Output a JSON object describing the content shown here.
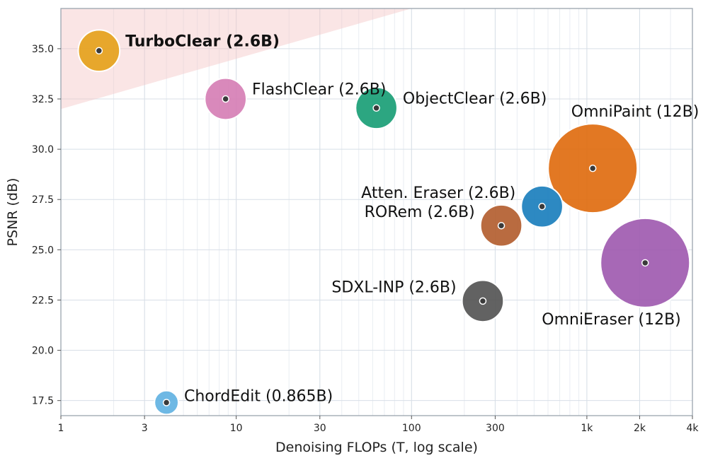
{
  "chart_data": {
    "type": "scatter",
    "xlabel": "Denoising FLOPs (T, log scale)",
    "ylabel": "PSNR (dB)",
    "x_scale": "log",
    "xlim": [
      1,
      4000
    ],
    "ylim": [
      16.75,
      37
    ],
    "x_ticks": [
      {
        "value": 1,
        "label": "1"
      },
      {
        "value": 3,
        "label": "3"
      },
      {
        "value": 10,
        "label": "10"
      },
      {
        "value": 30,
        "label": "30"
      },
      {
        "value": 100,
        "label": "100"
      },
      {
        "value": 300,
        "label": "300"
      },
      {
        "value": 1000,
        "label": "1k"
      },
      {
        "value": 2000,
        "label": "2k"
      },
      {
        "value": 4000,
        "label": "4k"
      }
    ],
    "y_ticks": [
      {
        "value": 17.5,
        "label": "17.5"
      },
      {
        "value": 20.0,
        "label": "20.0"
      },
      {
        "value": 22.5,
        "label": "22.5"
      },
      {
        "value": 25.0,
        "label": "25.0"
      },
      {
        "value": 27.5,
        "label": "27.5"
      },
      {
        "value": 30.0,
        "label": "30.0"
      },
      {
        "value": 32.5,
        "label": "32.5"
      },
      {
        "value": 35.0,
        "label": "35.0"
      }
    ],
    "grid": true,
    "highlight_region": {
      "color": "#f5c6c6",
      "boundary": [
        [
          1,
          32.0
        ],
        [
          100,
          37.0
        ]
      ]
    },
    "points": [
      {
        "name": "TurboClear (2.6B)",
        "x": 1.65,
        "y": 34.9,
        "params_b": 2.6,
        "color": "#e5a21c",
        "bold": true,
        "label_pos": "right-up"
      },
      {
        "name": "FlashClear (2.6B)",
        "x": 8.7,
        "y": 32.5,
        "params_b": 2.6,
        "color": "#d67fb5",
        "bold": false,
        "label_pos": "right-up"
      },
      {
        "name": "ObjectClear (2.6B)",
        "x": 63,
        "y": 32.05,
        "params_b": 2.6,
        "color": "#1a9e76",
        "bold": false,
        "label_pos": "right-up"
      },
      {
        "name": "OmniPaint (12B)",
        "x": 1080,
        "y": 29.05,
        "params_b": 12,
        "color": "#e06c10",
        "bold": false,
        "label_pos": "above"
      },
      {
        "name": "Atten. Eraser (2.6B)",
        "x": 555,
        "y": 27.15,
        "params_b": 2.6,
        "color": "#1b7fbd",
        "bold": false,
        "label_pos": "left-up"
      },
      {
        "name": "RORem (2.6B)",
        "x": 325,
        "y": 26.2,
        "params_b": 2.6,
        "color": "#b35e30",
        "bold": false,
        "label_pos": "left-up"
      },
      {
        "name": "OmniEraser (12B)",
        "x": 2150,
        "y": 24.35,
        "params_b": 12,
        "color": "#a05bb0",
        "bold": false,
        "label_pos": "below"
      },
      {
        "name": "SDXL-INP (2.6B)",
        "x": 255,
        "y": 22.45,
        "params_b": 2.6,
        "color": "#555555",
        "bold": false,
        "label_pos": "left-up"
      },
      {
        "name": "ChordEdit (0.865B)",
        "x": 4.0,
        "y": 17.4,
        "params_b": 0.865,
        "color": "#62b2e2",
        "bold": false,
        "label_pos": "right-up"
      }
    ]
  }
}
